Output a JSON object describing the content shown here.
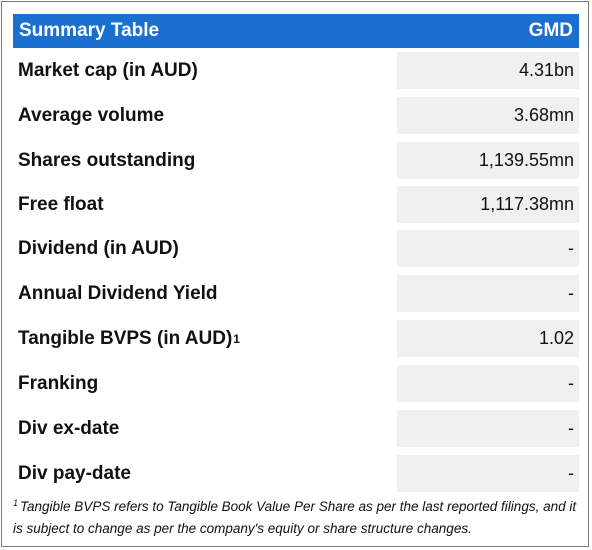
{
  "table": {
    "title": "Summary Table",
    "ticker": "GMD",
    "rows": [
      {
        "label": "Market cap (in AUD)",
        "sup": "",
        "value": "4.31bn"
      },
      {
        "label": "Average volume",
        "sup": "",
        "value": "3.68mn"
      },
      {
        "label": "Shares outstanding",
        "sup": "",
        "value": "1,139.55mn"
      },
      {
        "label": "Free float",
        "sup": "",
        "value": "1,117.38mn"
      },
      {
        "label": "Dividend (in AUD)",
        "sup": "",
        "value": "-"
      },
      {
        "label": "Annual Dividend Yield",
        "sup": "",
        "value": "-"
      },
      {
        "label": "Tangible BVPS (in AUD)",
        "sup": "1",
        "value": "1.02"
      },
      {
        "label": "Franking",
        "sup": "",
        "value": "-"
      },
      {
        "label": "Div ex-date",
        "sup": "",
        "value": "-"
      },
      {
        "label": "Div pay-date",
        "sup": "",
        "value": "-"
      }
    ]
  },
  "footnote": {
    "marker": "1",
    "text": "Tangible BVPS refers to Tangible Book Value Per Share as per the last reported filings, and it is subject to change as per the company's equity or share structure changes."
  }
}
